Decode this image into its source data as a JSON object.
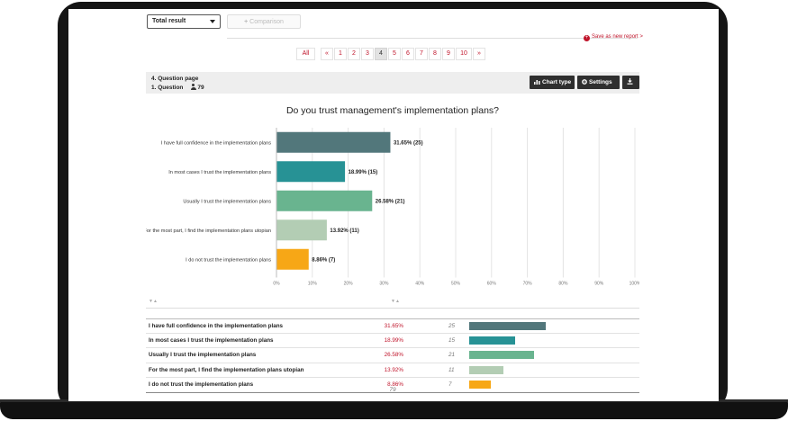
{
  "controls": {
    "result_select": "Total result",
    "comparison_label": "Comparison",
    "save_label": "Save as new report >"
  },
  "pagination": {
    "all_label": "All",
    "prev_label": "«",
    "next_label": "»",
    "pages": [
      "1",
      "2",
      "3",
      "4",
      "5",
      "6",
      "7",
      "8",
      "9",
      "10"
    ],
    "current": "4"
  },
  "question_header": {
    "page_label": "4. Question page",
    "question_label": "1. Question",
    "respondents": "79",
    "chart_type_label": "Chart type",
    "settings_label": "Settings"
  },
  "chart_data": {
    "type": "bar",
    "orientation": "horizontal",
    "title": "Do you trust management's implementation plans?",
    "categories": [
      "I have full confidence in the implementation plans",
      "In most cases I trust the implementation plans",
      "Usually I trust the implementation plans",
      "For the most part, I find the implementation plans utopian",
      "I do not trust the implementation plans"
    ],
    "values": [
      31.65,
      18.99,
      26.58,
      13.92,
      8.86
    ],
    "counts": [
      25,
      15,
      21,
      11,
      7
    ],
    "value_labels": [
      "31.65% (25)",
      "18.99% (15)",
      "26.58% (21)",
      "13.92% (11)",
      "8.86% (7)"
    ],
    "colors": [
      "#52777b",
      "#279295",
      "#69b48f",
      "#b3cdb4",
      "#f7a716"
    ],
    "xlim": [
      0,
      100
    ],
    "xticks": [
      "0%",
      "10%",
      "20%",
      "30%",
      "40%",
      "50%",
      "60%",
      "70%",
      "80%",
      "90%",
      "100%"
    ],
    "grid": true
  },
  "table": {
    "sort_marker": "▼▲",
    "rows": [
      {
        "label": "I have full confidence in the implementation plans",
        "pct": "31.65%",
        "count": "25"
      },
      {
        "label": "In most cases I trust the implementation plans",
        "pct": "18.99%",
        "count": "15"
      },
      {
        "label": "Usually I trust the implementation plans",
        "pct": "26.58%",
        "count": "21"
      },
      {
        "label": "For the most part, I find the implementation plans utopian",
        "pct": "13.92%",
        "count": "11"
      },
      {
        "label": "I do not trust the implementation plans",
        "pct": "8.86%",
        "count": "7"
      }
    ],
    "total": "79"
  }
}
